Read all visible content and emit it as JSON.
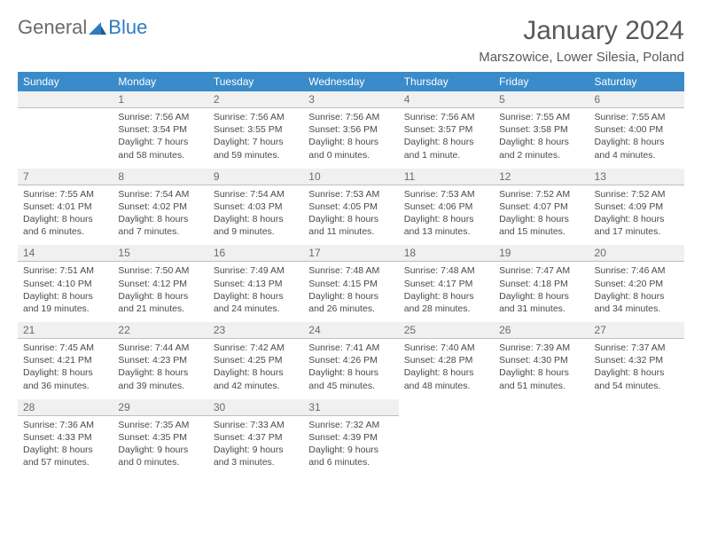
{
  "logo": {
    "part1": "General",
    "part2": "Blue"
  },
  "title": "January 2024",
  "location": "Marszowice, Lower Silesia, Poland",
  "colors": {
    "header_bg": "#3a8bc9",
    "header_text": "#ffffff",
    "daynum_bg": "#f0f0f0",
    "daynum_border": "#bfbfbf",
    "body_text": "#4a4a4a",
    "title_text": "#595959",
    "logo_gray": "#6b6b6b",
    "logo_blue": "#2e7cc0",
    "page_bg": "#ffffff"
  },
  "typography": {
    "title_fontsize": 30,
    "location_fontsize": 15,
    "dayhead_fontsize": 12,
    "daynum_fontsize": 12,
    "cell_fontsize": 10.5
  },
  "day_names": [
    "Sunday",
    "Monday",
    "Tuesday",
    "Wednesday",
    "Thursday",
    "Friday",
    "Saturday"
  ],
  "weeks": [
    [
      null,
      {
        "n": "1",
        "sunrise": "Sunrise: 7:56 AM",
        "sunset": "Sunset: 3:54 PM",
        "daylight": "Daylight: 7 hours and 58 minutes."
      },
      {
        "n": "2",
        "sunrise": "Sunrise: 7:56 AM",
        "sunset": "Sunset: 3:55 PM",
        "daylight": "Daylight: 7 hours and 59 minutes."
      },
      {
        "n": "3",
        "sunrise": "Sunrise: 7:56 AM",
        "sunset": "Sunset: 3:56 PM",
        "daylight": "Daylight: 8 hours and 0 minutes."
      },
      {
        "n": "4",
        "sunrise": "Sunrise: 7:56 AM",
        "sunset": "Sunset: 3:57 PM",
        "daylight": "Daylight: 8 hours and 1 minute."
      },
      {
        "n": "5",
        "sunrise": "Sunrise: 7:55 AM",
        "sunset": "Sunset: 3:58 PM",
        "daylight": "Daylight: 8 hours and 2 minutes."
      },
      {
        "n": "6",
        "sunrise": "Sunrise: 7:55 AM",
        "sunset": "Sunset: 4:00 PM",
        "daylight": "Daylight: 8 hours and 4 minutes."
      }
    ],
    [
      {
        "n": "7",
        "sunrise": "Sunrise: 7:55 AM",
        "sunset": "Sunset: 4:01 PM",
        "daylight": "Daylight: 8 hours and 6 minutes."
      },
      {
        "n": "8",
        "sunrise": "Sunrise: 7:54 AM",
        "sunset": "Sunset: 4:02 PM",
        "daylight": "Daylight: 8 hours and 7 minutes."
      },
      {
        "n": "9",
        "sunrise": "Sunrise: 7:54 AM",
        "sunset": "Sunset: 4:03 PM",
        "daylight": "Daylight: 8 hours and 9 minutes."
      },
      {
        "n": "10",
        "sunrise": "Sunrise: 7:53 AM",
        "sunset": "Sunset: 4:05 PM",
        "daylight": "Daylight: 8 hours and 11 minutes."
      },
      {
        "n": "11",
        "sunrise": "Sunrise: 7:53 AM",
        "sunset": "Sunset: 4:06 PM",
        "daylight": "Daylight: 8 hours and 13 minutes."
      },
      {
        "n": "12",
        "sunrise": "Sunrise: 7:52 AM",
        "sunset": "Sunset: 4:07 PM",
        "daylight": "Daylight: 8 hours and 15 minutes."
      },
      {
        "n": "13",
        "sunrise": "Sunrise: 7:52 AM",
        "sunset": "Sunset: 4:09 PM",
        "daylight": "Daylight: 8 hours and 17 minutes."
      }
    ],
    [
      {
        "n": "14",
        "sunrise": "Sunrise: 7:51 AM",
        "sunset": "Sunset: 4:10 PM",
        "daylight": "Daylight: 8 hours and 19 minutes."
      },
      {
        "n": "15",
        "sunrise": "Sunrise: 7:50 AM",
        "sunset": "Sunset: 4:12 PM",
        "daylight": "Daylight: 8 hours and 21 minutes."
      },
      {
        "n": "16",
        "sunrise": "Sunrise: 7:49 AM",
        "sunset": "Sunset: 4:13 PM",
        "daylight": "Daylight: 8 hours and 24 minutes."
      },
      {
        "n": "17",
        "sunrise": "Sunrise: 7:48 AM",
        "sunset": "Sunset: 4:15 PM",
        "daylight": "Daylight: 8 hours and 26 minutes."
      },
      {
        "n": "18",
        "sunrise": "Sunrise: 7:48 AM",
        "sunset": "Sunset: 4:17 PM",
        "daylight": "Daylight: 8 hours and 28 minutes."
      },
      {
        "n": "19",
        "sunrise": "Sunrise: 7:47 AM",
        "sunset": "Sunset: 4:18 PM",
        "daylight": "Daylight: 8 hours and 31 minutes."
      },
      {
        "n": "20",
        "sunrise": "Sunrise: 7:46 AM",
        "sunset": "Sunset: 4:20 PM",
        "daylight": "Daylight: 8 hours and 34 minutes."
      }
    ],
    [
      {
        "n": "21",
        "sunrise": "Sunrise: 7:45 AM",
        "sunset": "Sunset: 4:21 PM",
        "daylight": "Daylight: 8 hours and 36 minutes."
      },
      {
        "n": "22",
        "sunrise": "Sunrise: 7:44 AM",
        "sunset": "Sunset: 4:23 PM",
        "daylight": "Daylight: 8 hours and 39 minutes."
      },
      {
        "n": "23",
        "sunrise": "Sunrise: 7:42 AM",
        "sunset": "Sunset: 4:25 PM",
        "daylight": "Daylight: 8 hours and 42 minutes."
      },
      {
        "n": "24",
        "sunrise": "Sunrise: 7:41 AM",
        "sunset": "Sunset: 4:26 PM",
        "daylight": "Daylight: 8 hours and 45 minutes."
      },
      {
        "n": "25",
        "sunrise": "Sunrise: 7:40 AM",
        "sunset": "Sunset: 4:28 PM",
        "daylight": "Daylight: 8 hours and 48 minutes."
      },
      {
        "n": "26",
        "sunrise": "Sunrise: 7:39 AM",
        "sunset": "Sunset: 4:30 PM",
        "daylight": "Daylight: 8 hours and 51 minutes."
      },
      {
        "n": "27",
        "sunrise": "Sunrise: 7:37 AM",
        "sunset": "Sunset: 4:32 PM",
        "daylight": "Daylight: 8 hours and 54 minutes."
      }
    ],
    [
      {
        "n": "28",
        "sunrise": "Sunrise: 7:36 AM",
        "sunset": "Sunset: 4:33 PM",
        "daylight": "Daylight: 8 hours and 57 minutes."
      },
      {
        "n": "29",
        "sunrise": "Sunrise: 7:35 AM",
        "sunset": "Sunset: 4:35 PM",
        "daylight": "Daylight: 9 hours and 0 minutes."
      },
      {
        "n": "30",
        "sunrise": "Sunrise: 7:33 AM",
        "sunset": "Sunset: 4:37 PM",
        "daylight": "Daylight: 9 hours and 3 minutes."
      },
      {
        "n": "31",
        "sunrise": "Sunrise: 7:32 AM",
        "sunset": "Sunset: 4:39 PM",
        "daylight": "Daylight: 9 hours and 6 minutes."
      },
      null,
      null,
      null
    ]
  ]
}
